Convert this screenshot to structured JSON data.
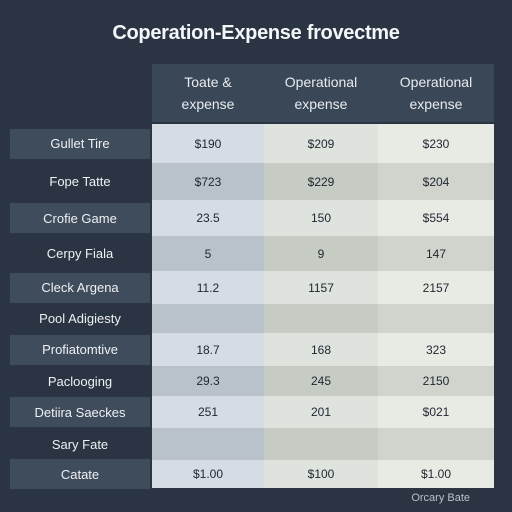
{
  "chart_data": {
    "type": "table",
    "title": "Coperation-Expense frovectme",
    "columns": [
      "Toate &\nexpense",
      "Operational\nexpense",
      "Operational\nexpense"
    ],
    "rows": [
      {
        "label": "Gullet Tire",
        "values": [
          "$190",
          "$209",
          "$230"
        ]
      },
      {
        "label": "Fope Tatte",
        "values": [
          "$723",
          "$229",
          "$204"
        ]
      },
      {
        "label": "Crofie Game",
        "values": [
          "23.5",
          "150",
          "$554"
        ]
      },
      {
        "label": "Cerpy Fiala",
        "values": [
          "5",
          "9",
          "147"
        ]
      },
      {
        "label": "Cleck Argena",
        "values": [
          "11.2",
          "1157",
          "2157"
        ]
      },
      {
        "label": "Pool Adigiesty",
        "values": [
          "",
          "",
          ""
        ]
      },
      {
        "label": "Profiatomtive",
        "values": [
          "18.7",
          "168",
          "323"
        ]
      },
      {
        "label": "Paclooging",
        "values": [
          "29.3",
          "245",
          "2150"
        ]
      },
      {
        "label": "Detiira Saeckes",
        "values": [
          "251",
          "201",
          "$021"
        ]
      },
      {
        "label": "Sary Fate",
        "values": [
          "",
          "",
          ""
        ]
      },
      {
        "label": "Catate",
        "values": [
          "$1.00",
          "$100",
          "$1.00"
        ]
      }
    ],
    "footer": "Orcary Bate"
  },
  "colors": {
    "background": "#2a3442",
    "header": "#3a4757",
    "label_shade": "#3f4c5c",
    "col1_light": "#d5dce3",
    "col1_dark": "#b9c2cb",
    "col2_light": "#dfe3dd",
    "col2_dark": "#c6cbc4",
    "col3_light": "#e8ebe4",
    "col3_dark": "#d0d4cc"
  }
}
